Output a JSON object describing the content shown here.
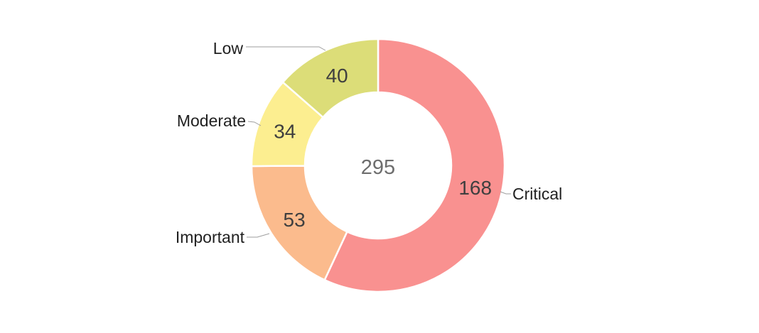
{
  "chart_data": {
    "type": "pie",
    "variant": "donut",
    "title": "",
    "categories": [
      "Critical",
      "Important",
      "Moderate",
      "Low"
    ],
    "values": [
      168,
      53,
      34,
      40
    ],
    "value_labels": [
      "168",
      "53",
      "34",
      "40"
    ],
    "slice_colors": [
      "#F99190",
      "#FBBB8D",
      "#FCEE90",
      "#DCDD78"
    ],
    "center_total": "295",
    "total": 295,
    "start_angle_deg": 0,
    "direction": "clockwise",
    "legend_position": "outside-callouts-with-leader-lines",
    "grid": "off"
  },
  "colors": {
    "background": "#FFFFFF",
    "value_label": "#3F3F3F",
    "center_label": "#6E6E6E",
    "category_label": "#212121",
    "leader_line": "#9E9E9E",
    "slice_gap": "#FFFFFF"
  }
}
